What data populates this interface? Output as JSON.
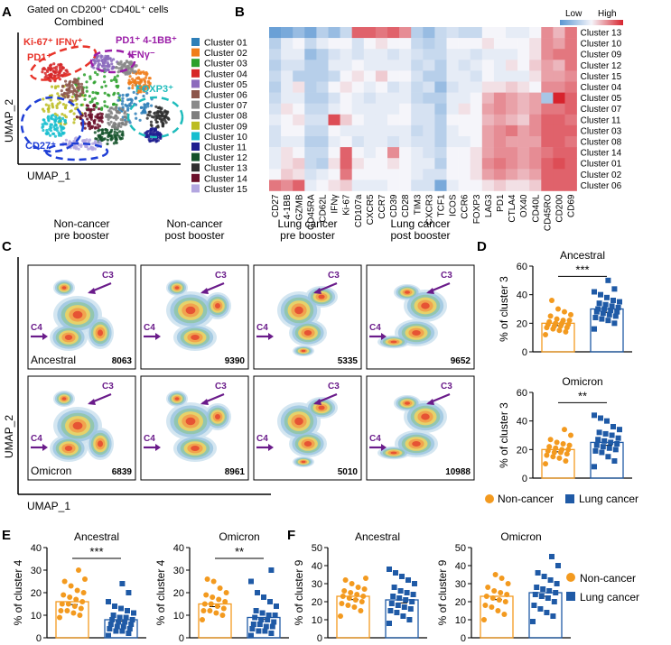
{
  "panel_letters": {
    "A": "A",
    "B": "B",
    "C": "C",
    "D": "D",
    "E": "E",
    "F": "F"
  },
  "panelA": {
    "gate_text": "Gated on CD200⁺ CD40L⁺ cells",
    "title": "Combined",
    "xlabel": "UMAP_1",
    "ylabel": "UMAP_2",
    "annotations": [
      {
        "text": "Ki-67⁺ IFNγ⁺",
        "color": "#e8342a"
      },
      {
        "text": "PD1⁺",
        "color": "#e8342a"
      },
      {
        "text": "PD1⁺ 4-1BB⁺",
        "color": "#9b1fa8"
      },
      {
        "text": "IFNγ⁻",
        "color": "#9b1fa8"
      },
      {
        "text": "FOXP3⁺",
        "color": "#1fbcbc"
      },
      {
        "text": "CD27⁺",
        "color": "#1f3fd6"
      }
    ],
    "legend": [
      {
        "label": "Cluster 01",
        "color": "#2e7fb8"
      },
      {
        "label": "Cluster 02",
        "color": "#f07d1a"
      },
      {
        "label": "Cluster 03",
        "color": "#2ca02c"
      },
      {
        "label": "Cluster 04",
        "color": "#d62728"
      },
      {
        "label": "Cluster 05",
        "color": "#8c6bbd"
      },
      {
        "label": "Cluster 06",
        "color": "#8c564b"
      },
      {
        "label": "Cluster 07",
        "color": "#8a8a8a"
      },
      {
        "label": "Cluster 08",
        "color": "#7f7f7f"
      },
      {
        "label": "Cluster 09",
        "color": "#bcbd22"
      },
      {
        "label": "Cluster 10",
        "color": "#17becf"
      },
      {
        "label": "Cluster 11",
        "color": "#1f1f8f"
      },
      {
        "label": "Cluster 12",
        "color": "#14522a"
      },
      {
        "label": "Cluster 13",
        "color": "#2f2f2f"
      },
      {
        "label": "Cluster 14",
        "color": "#6b0f2a"
      },
      {
        "label": "Cluster 15",
        "color": "#b3a6e0"
      }
    ]
  },
  "chart_data": [
    {
      "type": "heatmap",
      "panel": "B",
      "legend_low": "Low",
      "legend_high": "High",
      "columns": [
        "CD27",
        "4-1BB",
        "GZMB",
        "CD45RA",
        "CD62L",
        "IFNγ",
        "Ki-67",
        "CD107a",
        "CXCR5",
        "CCR7",
        "CD39",
        "CD28",
        "TIM3",
        "CXCR3",
        "TCF1",
        "ICOS",
        "CCR6",
        "FOXP3",
        "LAG3",
        "PD1",
        "CTLA4",
        "OX40",
        "CD40L",
        "CD45RO",
        "CD200",
        "CD69"
      ],
      "rows": [
        "Cluster 13",
        "Cluster 10",
        "Cluster 09",
        "Cluster 12",
        "Cluster 15",
        "Cluster 04",
        "Cluster 05",
        "Cluster 07",
        "Cluster 11",
        "Cluster 03",
        "Cluster 08",
        "Cluster 14",
        "Cluster 01",
        "Cluster 02",
        "Cluster 06"
      ],
      "values": [
        [
          0.05,
          0.1,
          0.2,
          0.1,
          0.3,
          0.2,
          0.35,
          0.85,
          0.85,
          0.8,
          0.85,
          0.75,
          0.3,
          0.2,
          0.35,
          0.4,
          0.35,
          0.35,
          0.5,
          0.5,
          0.45,
          0.45,
          0.5,
          0.75,
          0.65,
          0.8
        ],
        [
          0.3,
          0.45,
          0.5,
          0.35,
          0.45,
          0.5,
          0.5,
          0.4,
          0.5,
          0.55,
          0.5,
          0.5,
          0.35,
          0.3,
          0.35,
          0.5,
          0.5,
          0.5,
          0.55,
          0.5,
          0.5,
          0.5,
          0.55,
          0.75,
          0.7,
          0.8
        ],
        [
          0.35,
          0.45,
          0.45,
          0.2,
          0.3,
          0.4,
          0.45,
          0.4,
          0.45,
          0.45,
          0.4,
          0.45,
          0.4,
          0.35,
          0.35,
          0.45,
          0.45,
          0.4,
          0.45,
          0.45,
          0.45,
          0.5,
          0.55,
          0.75,
          0.8,
          0.8
        ],
        [
          0.3,
          0.4,
          0.4,
          0.3,
          0.3,
          0.45,
          0.45,
          0.5,
          0.45,
          0.45,
          0.45,
          0.45,
          0.35,
          0.4,
          0.3,
          0.45,
          0.4,
          0.45,
          0.5,
          0.45,
          0.55,
          0.5,
          0.6,
          0.7,
          0.65,
          0.8
        ],
        [
          0.35,
          0.45,
          0.3,
          0.3,
          0.3,
          0.35,
          0.5,
          0.55,
          0.5,
          0.6,
          0.5,
          0.5,
          0.4,
          0.3,
          0.3,
          0.45,
          0.45,
          0.4,
          0.5,
          0.45,
          0.45,
          0.45,
          0.55,
          0.7,
          0.7,
          0.75
        ],
        [
          0.3,
          0.45,
          0.55,
          0.3,
          0.35,
          0.5,
          0.55,
          0.5,
          0.45,
          0.5,
          0.4,
          0.45,
          0.35,
          0.4,
          0.2,
          0.4,
          0.45,
          0.45,
          0.55,
          0.55,
          0.6,
          0.55,
          0.5,
          0.75,
          0.75,
          0.8
        ],
        [
          0.35,
          0.45,
          0.45,
          0.3,
          0.3,
          0.4,
          0.5,
          0.45,
          0.4,
          0.45,
          0.45,
          0.45,
          0.35,
          0.3,
          0.3,
          0.45,
          0.45,
          0.5,
          0.65,
          0.75,
          0.7,
          0.65,
          0.7,
          0.25,
          1.0,
          0.85
        ],
        [
          0.4,
          0.55,
          0.5,
          0.35,
          0.35,
          0.45,
          0.5,
          0.45,
          0.45,
          0.45,
          0.45,
          0.5,
          0.4,
          0.4,
          0.25,
          0.45,
          0.55,
          0.5,
          0.7,
          0.75,
          0.7,
          0.65,
          0.7,
          0.8,
          0.8,
          0.85
        ],
        [
          0.45,
          0.5,
          0.55,
          0.4,
          0.4,
          0.9,
          0.6,
          0.5,
          0.45,
          0.45,
          0.5,
          0.5,
          0.4,
          0.4,
          0.3,
          0.5,
          0.5,
          0.5,
          0.65,
          0.7,
          0.65,
          0.6,
          0.75,
          0.85,
          0.85,
          0.8
        ],
        [
          0.4,
          0.5,
          0.5,
          0.35,
          0.35,
          0.5,
          0.45,
          0.45,
          0.45,
          0.45,
          0.45,
          0.45,
          0.35,
          0.4,
          0.3,
          0.45,
          0.5,
          0.5,
          0.7,
          0.75,
          0.8,
          0.7,
          0.75,
          0.85,
          0.85,
          0.85
        ],
        [
          0.4,
          0.45,
          0.45,
          0.3,
          0.3,
          0.45,
          0.5,
          0.4,
          0.45,
          0.45,
          0.4,
          0.45,
          0.4,
          0.4,
          0.3,
          0.45,
          0.45,
          0.5,
          0.7,
          0.75,
          0.7,
          0.7,
          0.7,
          0.85,
          0.85,
          0.8
        ],
        [
          0.45,
          0.55,
          0.5,
          0.35,
          0.35,
          0.5,
          0.85,
          0.5,
          0.45,
          0.5,
          0.75,
          0.5,
          0.45,
          0.4,
          0.35,
          0.5,
          0.5,
          0.55,
          0.7,
          0.75,
          0.75,
          0.7,
          0.75,
          0.8,
          0.85,
          0.85
        ],
        [
          0.45,
          0.55,
          0.6,
          0.35,
          0.3,
          0.55,
          0.85,
          0.55,
          0.5,
          0.5,
          0.55,
          0.5,
          0.45,
          0.45,
          0.3,
          0.5,
          0.5,
          0.55,
          0.75,
          0.8,
          0.75,
          0.7,
          0.75,
          0.85,
          0.9,
          0.85
        ],
        [
          0.5,
          0.6,
          0.55,
          0.4,
          0.45,
          0.5,
          0.8,
          0.5,
          0.5,
          0.5,
          0.5,
          0.5,
          0.45,
          0.4,
          0.4,
          0.5,
          0.5,
          0.55,
          0.7,
          0.75,
          0.7,
          0.65,
          0.7,
          0.85,
          0.85,
          0.85
        ],
        [
          0.8,
          0.75,
          0.85,
          0.45,
          0.5,
          0.55,
          0.6,
          0.45,
          0.45,
          0.45,
          0.5,
          0.5,
          0.4,
          0.4,
          0.1,
          0.45,
          0.5,
          0.5,
          0.55,
          0.6,
          0.55,
          0.55,
          0.6,
          0.85,
          0.85,
          0.85
        ]
      ]
    },
    {
      "type": "density-umap",
      "panel": "C",
      "xlabel": "UMAP_1",
      "ylabel": "UMAP_2",
      "column_titles": [
        "Non-cancer\npre booster",
        "Non-cancer\npost booster",
        "Lung cancer\npre booster",
        "Lung cancer\npost booster"
      ],
      "row_labels": [
        "Ancestral",
        "Omicron"
      ],
      "arrow_labels": {
        "c3": "C3",
        "c4": "C4"
      },
      "counts": [
        [
          8063,
          9390,
          5335,
          9652
        ],
        [
          6839,
          8961,
          5010,
          10988
        ]
      ]
    },
    {
      "type": "scatter-bar",
      "panel": "D1",
      "title": "Ancestral",
      "ylabel": "% of cluster 3",
      "ylim": [
        0,
        60
      ],
      "yticks": [
        0,
        20,
        40,
        60
      ],
      "significance": "***",
      "groups": [
        {
          "name": "Non-cancer",
          "mean": 20,
          "values": [
            12,
            14,
            15,
            16,
            17,
            17,
            18,
            18,
            19,
            19,
            20,
            20,
            21,
            22,
            22,
            23,
            25,
            26,
            28,
            30,
            36
          ]
        },
        {
          "name": "Lung cancer",
          "mean": 30,
          "values": [
            16,
            20,
            22,
            23,
            24,
            25,
            26,
            27,
            28,
            28,
            29,
            30,
            30,
            31,
            32,
            33,
            34,
            35,
            36,
            38,
            40,
            42,
            44,
            50
          ]
        }
      ]
    },
    {
      "type": "scatter-bar",
      "panel": "D2",
      "title": "Omicron",
      "ylabel": "% of cluster 3",
      "ylim": [
        0,
        60
      ],
      "yticks": [
        0,
        20,
        40,
        60
      ],
      "significance": "**",
      "groups": [
        {
          "name": "Non-cancer",
          "mean": 20,
          "values": [
            10,
            12,
            14,
            15,
            16,
            17,
            18,
            18,
            19,
            20,
            20,
            21,
            22,
            23,
            24,
            25,
            27,
            30,
            34
          ]
        },
        {
          "name": "Lung cancer",
          "mean": 25,
          "values": [
            8,
            12,
            15,
            18,
            19,
            20,
            21,
            22,
            23,
            24,
            25,
            26,
            27,
            28,
            30,
            31,
            32,
            34,
            36,
            40,
            42,
            44
          ]
        }
      ]
    },
    {
      "type": "scatter-bar",
      "panel": "E1",
      "title": "Ancestral",
      "ylabel": "% of cluster 4",
      "ylim": [
        0,
        40
      ],
      "yticks": [
        0,
        10,
        20,
        30,
        40
      ],
      "significance": "***",
      "groups": [
        {
          "name": "Non-cancer",
          "mean": 16,
          "values": [
            9,
            10,
            11,
            12,
            12,
            13,
            14,
            15,
            15,
            16,
            17,
            18,
            19,
            20,
            21,
            23,
            25,
            26,
            30
          ]
        },
        {
          "name": "Lung cancer",
          "mean": 8,
          "values": [
            1,
            2,
            3,
            3,
            4,
            4,
            5,
            5,
            6,
            6,
            7,
            7,
            8,
            8,
            9,
            9,
            10,
            11,
            12,
            13,
            14,
            16,
            20,
            24
          ]
        }
      ]
    },
    {
      "type": "scatter-bar",
      "panel": "E2",
      "title": "Omicron",
      "ylabel": "% of cluster 4",
      "ylim": [
        0,
        40
      ],
      "yticks": [
        0,
        10,
        20,
        30,
        40
      ],
      "significance": "**",
      "groups": [
        {
          "name": "Non-cancer",
          "mean": 15,
          "values": [
            8,
            10,
            11,
            12,
            12,
            13,
            14,
            15,
            15,
            16,
            17,
            18,
            19,
            20,
            22,
            25,
            26
          ]
        },
        {
          "name": "Lung cancer",
          "mean": 9,
          "values": [
            1,
            2,
            3,
            3,
            4,
            5,
            5,
            6,
            6,
            7,
            8,
            8,
            9,
            10,
            10,
            11,
            12,
            14,
            16,
            18,
            20,
            25,
            30
          ]
        }
      ]
    },
    {
      "type": "scatter-bar",
      "panel": "F1",
      "title": "Ancestral",
      "ylabel": "% of cluster 9",
      "ylim": [
        0,
        50
      ],
      "yticks": [
        0,
        10,
        20,
        30,
        40,
        50
      ],
      "significance": "",
      "groups": [
        {
          "name": "Non-cancer",
          "mean": 23,
          "values": [
            12,
            15,
            17,
            18,
            19,
            20,
            21,
            22,
            23,
            23,
            24,
            25,
            26,
            27,
            28,
            30,
            32,
            33
          ]
        },
        {
          "name": "Lung cancer",
          "mean": 21,
          "values": [
            8,
            10,
            12,
            14,
            15,
            16,
            17,
            18,
            19,
            20,
            21,
            22,
            23,
            24,
            25,
            26,
            28,
            30,
            32,
            34,
            36,
            38
          ]
        }
      ]
    },
    {
      "type": "scatter-bar",
      "panel": "F2",
      "title": "Omicron",
      "ylabel": "% of cluster 9",
      "ylim": [
        0,
        50
      ],
      "yticks": [
        0,
        10,
        20,
        30,
        40,
        50
      ],
      "significance": "",
      "groups": [
        {
          "name": "Non-cancer",
          "mean": 23,
          "values": [
            10,
            13,
            15,
            17,
            18,
            20,
            21,
            22,
            23,
            24,
            25,
            26,
            28,
            30,
            33,
            35
          ]
        },
        {
          "name": "Lung cancer",
          "mean": 25,
          "values": [
            9,
            12,
            14,
            16,
            18,
            20,
            22,
            23,
            24,
            25,
            26,
            27,
            28,
            30,
            32,
            34,
            36,
            40,
            45
          ]
        }
      ]
    }
  ],
  "legend_D": {
    "items": [
      {
        "label": "Non-cancer",
        "color": "#f39a1f"
      },
      {
        "label": "Lung cancer",
        "color": "#1f5aa6"
      }
    ]
  },
  "legend_F": {
    "items": [
      {
        "label": "Non-cancer",
        "color": "#f39a1f"
      },
      {
        "label": "Lung cancer",
        "color": "#1f5aa6"
      }
    ]
  }
}
